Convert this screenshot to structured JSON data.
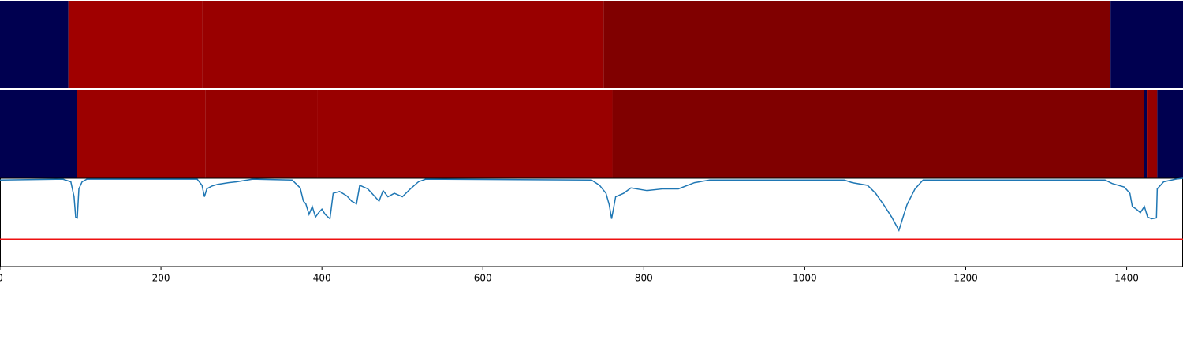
{
  "chart_data": [
    {
      "type": "segments",
      "xlim": [
        0,
        1470
      ],
      "segments": [
        {
          "start": 0,
          "end": 85,
          "color": "#000050"
        },
        {
          "start": 85,
          "end": 251,
          "color": "#a00000"
        },
        {
          "start": 251,
          "end": 750,
          "color": "#990000"
        },
        {
          "start": 750,
          "end": 1380,
          "color": "#800000"
        },
        {
          "start": 1380,
          "end": 1470,
          "color": "#000050"
        }
      ]
    },
    {
      "type": "segments",
      "xlim": [
        0,
        1470
      ],
      "segments": [
        {
          "start": 0,
          "end": 96,
          "color": "#000050"
        },
        {
          "start": 96,
          "end": 255,
          "color": "#9c0000"
        },
        {
          "start": 255,
          "end": 394,
          "color": "#960000"
        },
        {
          "start": 394,
          "end": 761,
          "color": "#990000"
        },
        {
          "start": 761,
          "end": 1421,
          "color": "#800000"
        },
        {
          "start": 1421,
          "end": 1425,
          "color": "#000050"
        },
        {
          "start": 1425,
          "end": 1438,
          "color": "#960000"
        },
        {
          "start": 1438,
          "end": 1470,
          "color": "#000050"
        }
      ]
    },
    {
      "type": "line",
      "xlim": [
        0,
        1470
      ],
      "ylim": [
        0,
        1
      ],
      "xticks": [
        0,
        200,
        400,
        600,
        800,
        1000,
        1200,
        1400
      ],
      "threshold": 0.31,
      "threshold_color": "#ee1111",
      "series": [
        {
          "color": "#1f77b4",
          "x": [
            0,
            78,
            88,
            92,
            94,
            96,
            98,
            102,
            108,
            245,
            251,
            254,
            257,
            263,
            270,
            284,
            294,
            314,
            363,
            373,
            377,
            380,
            384,
            388,
            392,
            396,
            400,
            404,
            410,
            414,
            422,
            431,
            437,
            443,
            447,
            457,
            465,
            471,
            476,
            482,
            490,
            500,
            510,
            520,
            529,
            735,
            745,
            753,
            757,
            760,
            765,
            775,
            784,
            804,
            824,
            843,
            863,
            882,
            1049,
            1059,
            1078,
            1088,
            1098,
            1108,
            1117,
            1127,
            1137,
            1147,
            1373,
            1382,
            1397,
            1404,
            1407,
            1412,
            1417,
            1422,
            1426,
            1431,
            1437,
            1438,
            1446,
            1461,
            1470
          ],
          "values": [
            0.98,
            0.99,
            0.96,
            0.79,
            0.56,
            0.55,
            0.88,
            0.96,
            0.99,
            0.99,
            0.92,
            0.79,
            0.88,
            0.91,
            0.93,
            0.95,
            0.96,
            0.99,
            0.98,
            0.89,
            0.74,
            0.71,
            0.59,
            0.68,
            0.56,
            0.61,
            0.65,
            0.59,
            0.54,
            0.83,
            0.85,
            0.8,
            0.74,
            0.71,
            0.92,
            0.88,
            0.8,
            0.74,
            0.86,
            0.79,
            0.83,
            0.79,
            0.88,
            0.96,
            0.99,
            0.98,
            0.92,
            0.83,
            0.7,
            0.54,
            0.79,
            0.83,
            0.89,
            0.86,
            0.88,
            0.88,
            0.95,
            0.98,
            0.98,
            0.95,
            0.92,
            0.83,
            0.7,
            0.56,
            0.41,
            0.7,
            0.88,
            0.98,
            0.98,
            0.94,
            0.9,
            0.83,
            0.68,
            0.65,
            0.61,
            0.68,
            0.56,
            0.54,
            0.55,
            0.88,
            0.96,
            0.99,
            1.0
          ]
        }
      ]
    }
  ]
}
